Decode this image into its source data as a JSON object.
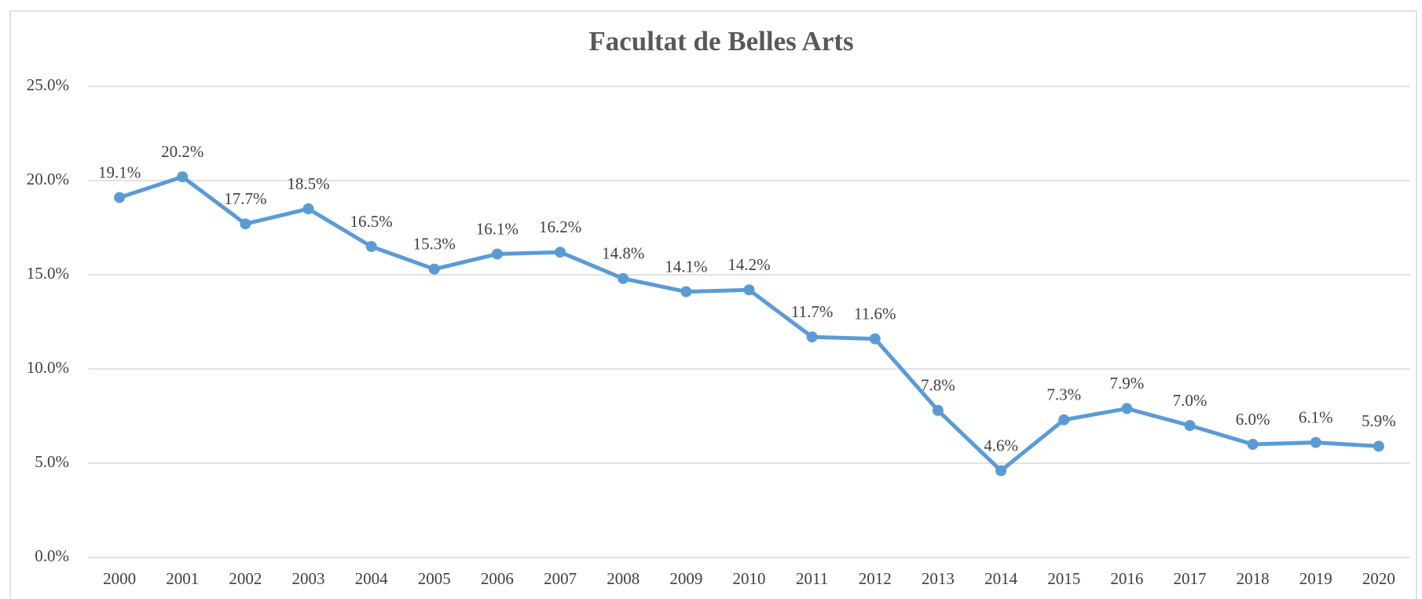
{
  "chart_data": {
    "type": "line",
    "title": "Facultat de Belles Arts",
    "categories": [
      "2000",
      "2001",
      "2002",
      "2003",
      "2004",
      "2005",
      "2006",
      "2007",
      "2008",
      "2009",
      "2010",
      "2011",
      "2012",
      "2013",
      "2014",
      "2015",
      "2016",
      "2017",
      "2018",
      "2019",
      "2020"
    ],
    "series": [
      {
        "name": "Facultat de Belles Arts",
        "color": "#5b9bd5",
        "values": [
          19.1,
          20.2,
          17.7,
          18.5,
          16.5,
          15.3,
          16.1,
          16.2,
          14.8,
          14.1,
          14.2,
          11.7,
          11.6,
          7.8,
          4.6,
          7.3,
          7.9,
          7.0,
          6.0,
          6.1,
          5.9
        ],
        "value_labels": [
          "19.1%",
          "20.2%",
          "17.7%",
          "18.5%",
          "16.5%",
          "15.3%",
          "16.1%",
          "16.2%",
          "14.8%",
          "14.1%",
          "14.2%",
          "11.7%",
          "11.6%",
          "7.8%",
          "4.6%",
          "7.3%",
          "7.9%",
          "7.0%",
          "6.0%",
          "6.1%",
          "5.9%"
        ]
      }
    ],
    "ylim": [
      0,
      25
    ],
    "yticks": [
      {
        "value": 0,
        "label": "0.0%"
      },
      {
        "value": 5,
        "label": "5.0%"
      },
      {
        "value": 10,
        "label": "10.0%"
      },
      {
        "value": 15,
        "label": "15.0%"
      },
      {
        "value": 20,
        "label": "20.0%"
      },
      {
        "value": 25,
        "label": "25.0%"
      }
    ],
    "grid": true
  }
}
